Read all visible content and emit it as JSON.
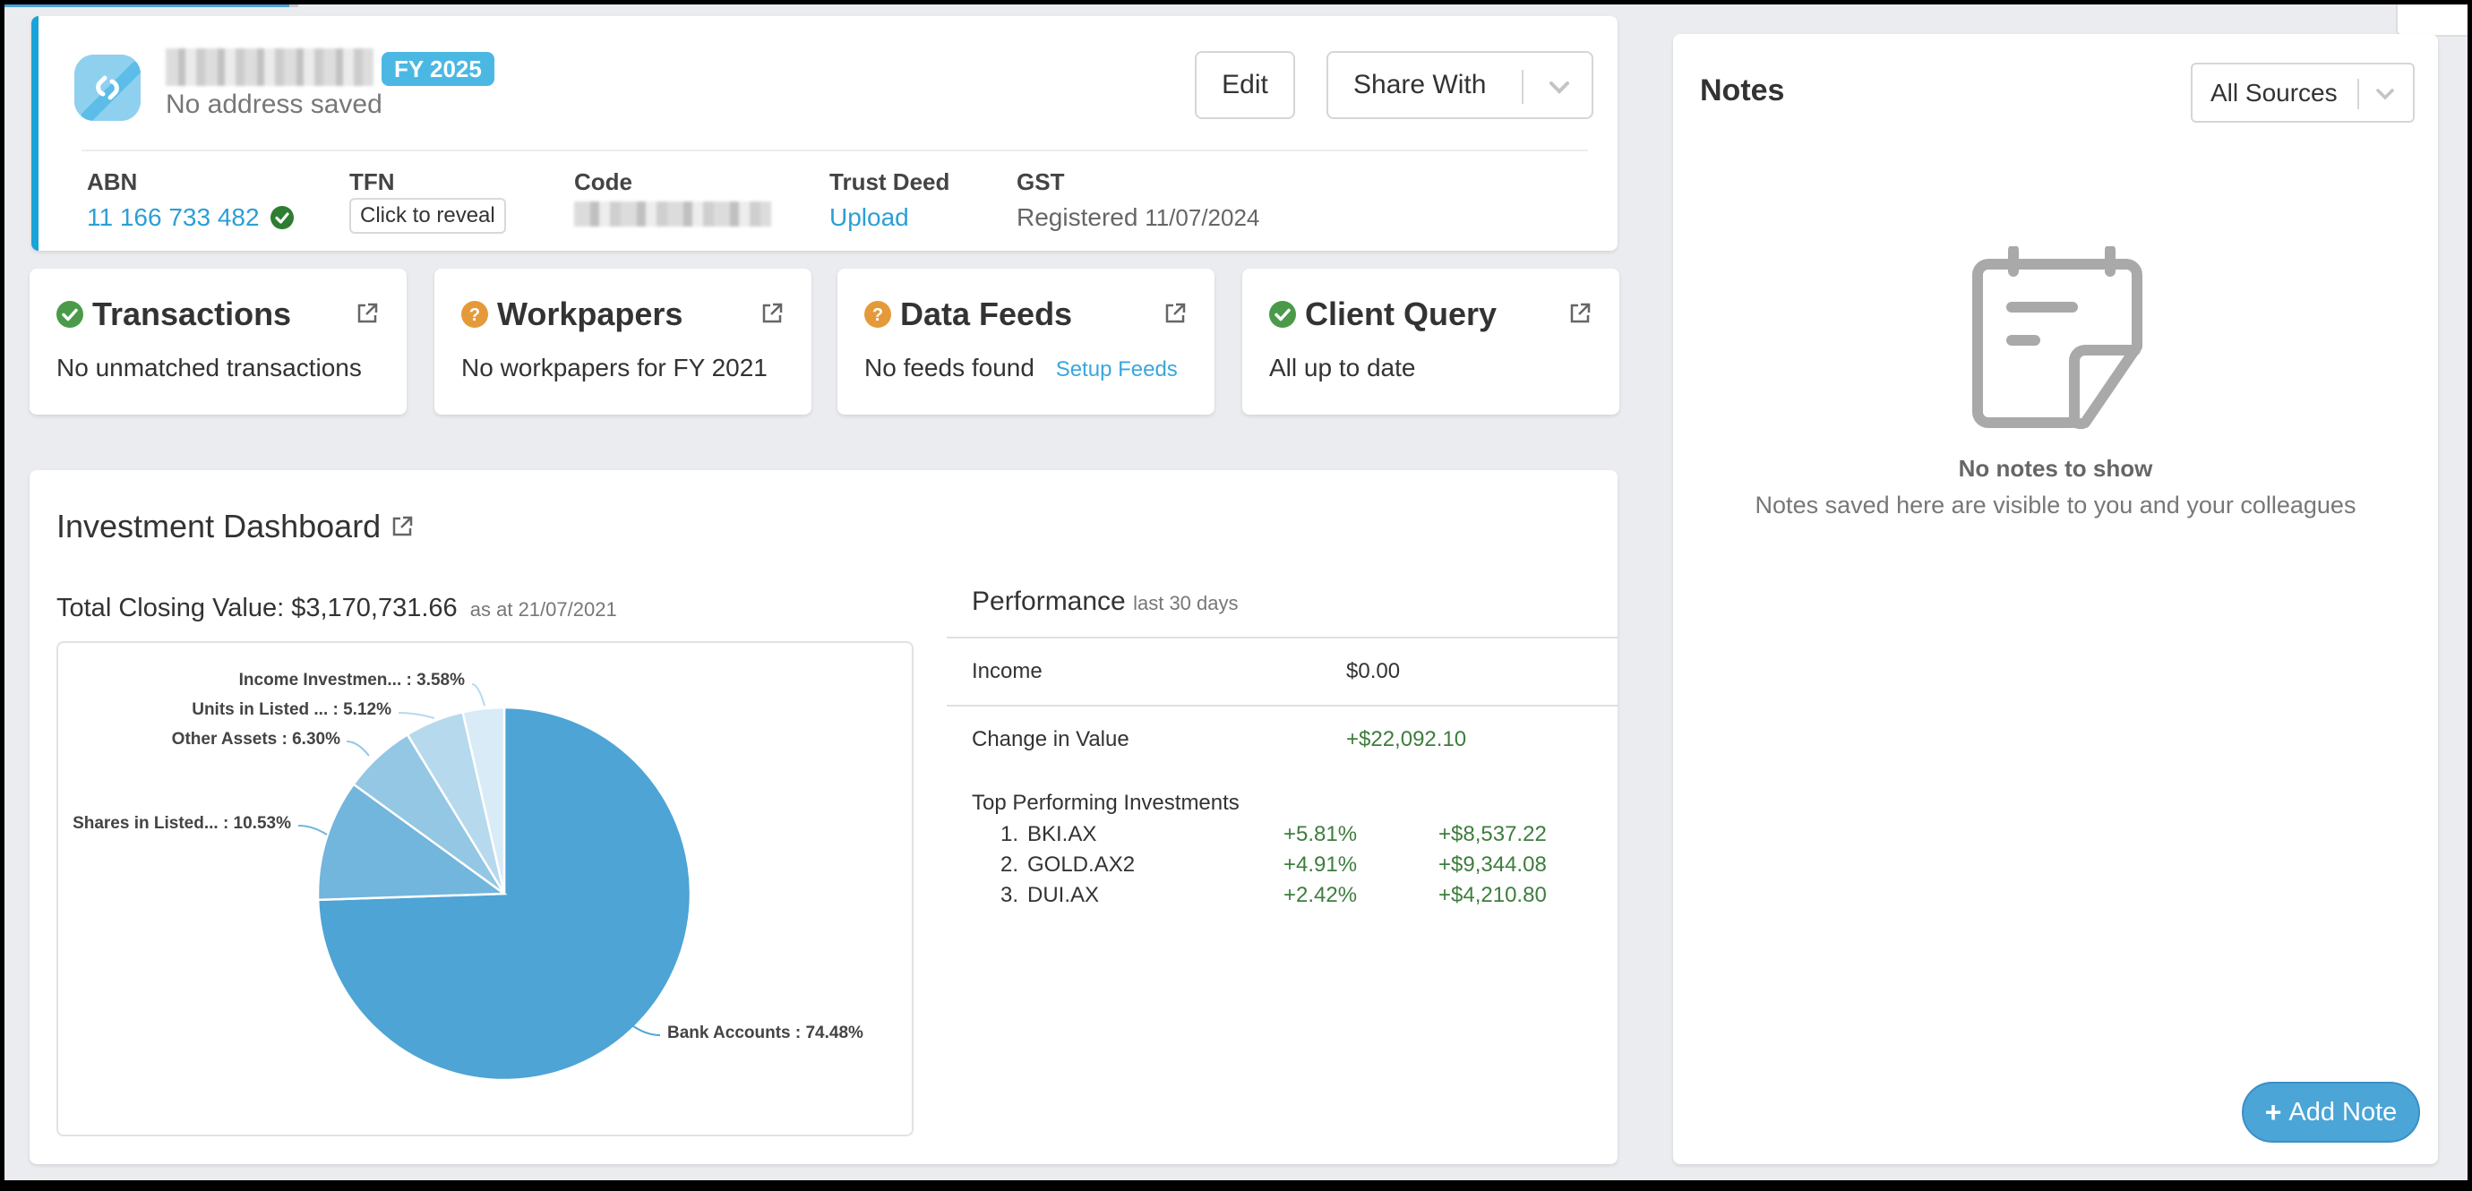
{
  "colors": {
    "accent": "#1aa3d9",
    "link": "#2b9fd6",
    "success": "#4a9a4a",
    "warning": "#e59a3a",
    "positive_value": "#3d7d3d",
    "add_note_button": "#4ba5d6"
  },
  "client": {
    "name_redacted": true,
    "fy_badge": "FY 2025",
    "address": "No address saved",
    "actions": {
      "edit": "Edit",
      "share": "Share With"
    },
    "fields": {
      "abn": {
        "label": "ABN",
        "value": "11 166 733 482",
        "verified_icon": "check-circle-icon"
      },
      "tfn": {
        "label": "TFN",
        "button": "Click to reveal"
      },
      "code": {
        "label": "Code",
        "value_redacted": true
      },
      "trust_deed": {
        "label": "Trust Deed",
        "link": "Upload"
      },
      "gst": {
        "label": "GST",
        "value": "Registered",
        "date": "11/07/2024"
      }
    }
  },
  "status_cards": [
    {
      "title": "Transactions",
      "status": "ok",
      "icon": "check-circle-icon",
      "text": "No unmatched transactions"
    },
    {
      "title": "Workpapers",
      "status": "warning",
      "icon": "question-circle-icon",
      "text": "No workpapers for FY 2021"
    },
    {
      "title": "Data Feeds",
      "status": "warning",
      "icon": "question-circle-icon",
      "text": "No feeds found",
      "link": "Setup Feeds"
    },
    {
      "title": "Client Query",
      "status": "ok",
      "icon": "check-circle-icon",
      "text": "All up to date"
    }
  ],
  "investment": {
    "title": "Investment Dashboard",
    "total_label": "Total Closing Value:",
    "total_value": "$3,170,731.66",
    "as_at": "as at 21/07/2021",
    "performance": {
      "title": "Performance",
      "period": "last 30 days",
      "rows": [
        {
          "label": "Income",
          "value": "$0.00"
        },
        {
          "label": "Change in Value",
          "value": "+$22,092.10"
        }
      ],
      "top_title": "Top Performing Investments",
      "top": [
        {
          "rank": "1.",
          "symbol": "BKI.AX",
          "pct": "+5.81%",
          "amount": "+$8,537.22"
        },
        {
          "rank": "2.",
          "symbol": "GOLD.AX2",
          "pct": "+4.91%",
          "amount": "+$9,344.08"
        },
        {
          "rank": "3.",
          "symbol": "DUI.AX",
          "pct": "+2.42%",
          "amount": "+$4,210.80"
        }
      ]
    }
  },
  "chart_data": {
    "type": "pie",
    "title": "Total Closing Value: $3,170,731.66 as at 21/07/2021",
    "categories": [
      "Bank Accounts",
      "Shares in Listed...",
      "Other Assets",
      "Units in Listed ...",
      "Income Investmen..."
    ],
    "values": [
      74.48,
      10.53,
      6.3,
      5.12,
      3.58
    ],
    "labels": [
      "Bank Accounts : 74.48%",
      "Shares in Listed... : 10.53%",
      "Other Assets : 6.30%",
      "Units in Listed ... : 5.12%",
      "Income Investmen... : 3.58%"
    ],
    "colors": [
      "#4da4d5",
      "#72b5dd",
      "#93c7e4",
      "#b6d9ed",
      "#d9ebf6"
    ],
    "start_angle": "12 o'clock, clockwise",
    "legend": "none (outside data labels)"
  },
  "notes": {
    "title": "Notes",
    "filter": "All Sources",
    "empty_title": "No notes to show",
    "empty_subtitle": "Notes saved here are visible to you and your colleagues",
    "add_button": "Add Note"
  }
}
